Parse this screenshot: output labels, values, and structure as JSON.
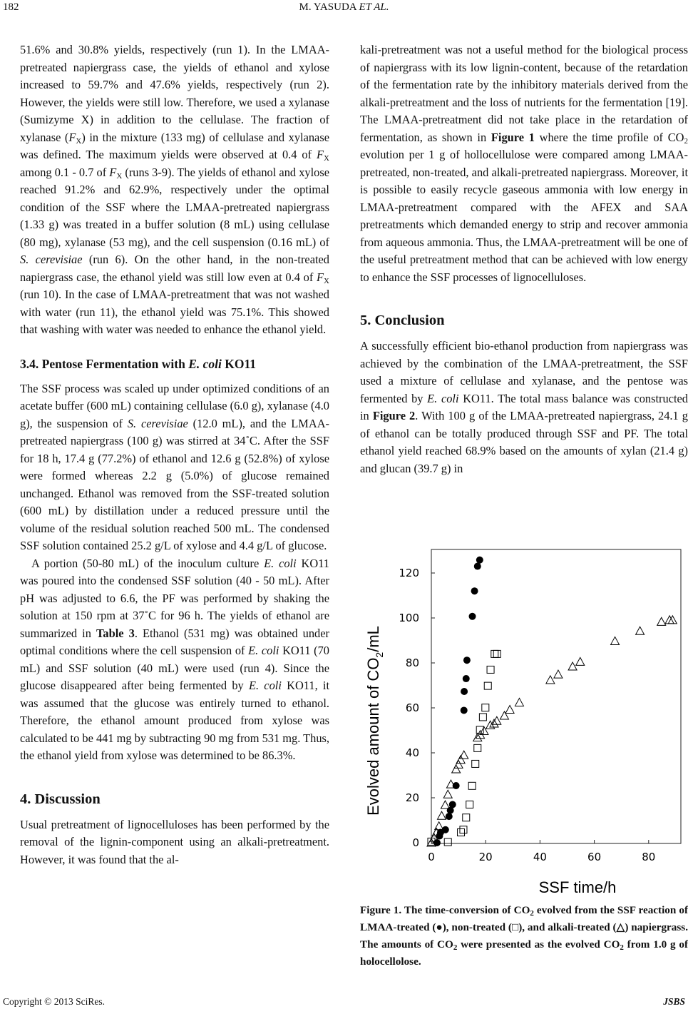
{
  "header": {
    "page_number": "182",
    "authors": "M. YASUDA ",
    "authors_suffix": "ET AL."
  },
  "left_column": [
    {
      "type": "p",
      "indent": false,
      "segments": [
        "51.6% and 30.8% yields, respectively (run 1). In the LMAA-pretreated napiergrass case, the yields of ethanol and xylose increased to 59.7% and 47.6% yields, respectively (run 2). However, the yields were still low. Therefore, we used a xylanase (Sumizyme X) in addition to the cellulase. The fraction of xylanase (",
        {
          "t": "F",
          "s": "i"
        },
        {
          "t": "X",
          "s": "sub"
        },
        ") in the mixture (133 mg) of cellulase and xylanase was defined. The maximum yields were observed at 0.4 of ",
        {
          "t": "F",
          "s": "i"
        },
        {
          "t": "X",
          "s": "sub"
        },
        " among 0.1 - 0.7 of ",
        {
          "t": "F",
          "s": "i"
        },
        {
          "t": "X",
          "s": "sub"
        },
        " (runs 3-9). The yields of ethanol and xylose reached 91.2% and 62.9%, respectively under the optimal condition of the SSF where the LMAA-pretreated napiergrass (1.33 g) was treated in a buffer solution (8 mL) using cellulase (80 mg), xylanase (53 mg), and the cell suspension (0.16 mL) of ",
        {
          "t": "S. cerevisiae",
          "s": "i"
        },
        " (run 6). On the other hand, in the non-treated napiergrass case, the ethanol yield was still low even at 0.4 of ",
        {
          "t": "F",
          "s": "i"
        },
        {
          "t": "X",
          "s": "sub"
        },
        " (run 10). In the case of LMAA-pretreatment that was not washed with water (run 11), the ethanol yield was 75.1%. This showed that washing with water was needed to enhance the ethanol yield."
      ]
    },
    {
      "type": "h",
      "segments": [
        "3.4. Pentose Fermentation with ",
        {
          "t": "E. coli",
          "s": "i"
        },
        " KO11"
      ]
    },
    {
      "type": "p",
      "indent": false,
      "segments": [
        "The SSF process was scaled up under optimized conditions of an acetate buffer (600 mL) containing cellulase (6.0 g), xylanase (4.0 g), the suspension of ",
        {
          "t": "S. cerevisiae",
          "s": "i"
        },
        " (12.0 mL), and the LMAA-pretreated napiergrass (100 g) was stirred at 34˚C. After the SSF for 18 h, 17.4 g (77.2%) of ethanol and 12.6 g (52.8%) of xylose were formed whereas 2.2 g (5.0%) of glucose remained unchanged. Ethanol was removed from the SSF-treated solution (600 mL) by distillation under a reduced pressure until the volume of the residual solution reached 500 mL. The condensed SSF solution contained 25.2 g/L of xylose and 4.4 g/L of glucose."
      ]
    },
    {
      "type": "p",
      "indent": true,
      "segments": [
        "A portion (50-80 mL) of the inoculum culture ",
        {
          "t": "E. coli",
          "s": "i"
        },
        " KO11 was poured into the condensed SSF solution (40 - 50 mL). After pH was adjusted to 6.6, the PF was performed by shaking the solution at 150 rpm at 37˚C for 96 h. The yields of ethanol are summarized in ",
        {
          "t": "Table 3",
          "s": "b"
        },
        ". Ethanol (531 mg) was obtained under optimal conditions where the cell suspension of ",
        {
          "t": "E. coli",
          "s": "i"
        },
        " KO11 (70 mL) and SSF solution (40 mL) were used (run 4). Since the glucose disappeared after being fermented by ",
        {
          "t": "E. coli",
          "s": "i"
        },
        " KO11, it was assumed that the glucose was entirely turned to ethanol. Therefore, the ethanol amount produced from xylose was calculated to be 441 mg by subtracting 90 mg from 531 mg. Thus, the ethanol yield from xylose was determined to be 86.3%."
      ]
    },
    {
      "type": "hbig",
      "segments": [
        "4. Discussion"
      ]
    },
    {
      "type": "p",
      "indent": false,
      "segments": [
        "Usual pretreatment of lignocelluloses has been performed by the removal of the lignin-component using an alkali-pretreatment. However, it was found that the al-"
      ]
    }
  ],
  "right_column": [
    {
      "type": "p",
      "indent": false,
      "segments": [
        "kali-pretreatment was not a useful method for the biological process of napiergrass with its low lignin-content, because of the retardation of the fermentation rate by the inhibitory materials derived from the alkali-pretreatment and the loss of nutrients for the fermentation [19]. The LMAA-pretreatment did not take place in the retardation of fermentation, as shown in ",
        {
          "t": "Figure 1",
          "s": "b"
        },
        " where the time profile of CO",
        {
          "t": "2",
          "s": "sub"
        },
        " evolution per 1 g of hollocellulose were compared among LMAA-pretreated, non-treated, and alkali-pretreated napiergrass. Moreover, it is possible to easily recycle gaseous ammonia with low energy in LMAA-pretreatment compared with the AFEX and SAA pretreatments which demanded energy to strip and recover ammonia from aqueous ammonia. Thus, the LMAA-pretreatment will be one of the useful pretreatment method that can be achieved with low energy to enhance the SSF processes of lignocelluloses."
      ]
    },
    {
      "type": "hbig",
      "segments": [
        "5. Conclusion"
      ]
    },
    {
      "type": "p",
      "indent": false,
      "segments": [
        "A successfully efficient bio-ethanol production from napiergrass was achieved by the combination of the LMAA-pretreatment, the SSF used a mixture of cellulase and xylanase, and the pentose was fermented by ",
        {
          "t": "E. coli",
          "s": "i"
        },
        " KO11. The total mass balance was constructed in ",
        {
          "t": "Figure 2",
          "s": "b"
        },
        ". With 100 g of the LMAA-pretreated napiergrass, 24.1 g of ethanol can be totally produced through SSF and PF. The total ethanol yield reached 68.9% based on the amounts of xylan (21.4 g) and glucan (39.7 g) in"
      ]
    }
  ],
  "figure_caption": {
    "segments": [
      "Figure 1. The time-conversion of CO",
      {
        "t": "2",
        "s": "sub"
      },
      " evolved from the SSF reaction of LMAA-treated (●), non-treated (□), and alkali-treated (△) napiergrass. The amounts of CO",
      {
        "t": "2",
        "s": "sub"
      },
      " were presented as the evolved CO",
      {
        "t": "2",
        "s": "sub"
      },
      " from 1.0 g of holocellolose."
    ]
  },
  "chart_data": {
    "type": "scatter",
    "xlabel": "SSF time/h",
    "ylabel_main": "Evolved amount of CO",
    "ylabel_sub": "2",
    "ylabel_unit": "/mL",
    "xlim": [
      0,
      92
    ],
    "ylim": [
      0,
      130
    ],
    "xticks": [
      "0",
      "20",
      "40",
      "60",
      "80"
    ],
    "yticks": [
      "0",
      "20",
      "40",
      "60",
      "80",
      "100",
      "120"
    ],
    "grid": false,
    "series": [
      {
        "marker": "filled-circle",
        "points": [
          [
            2.1,
            0
          ],
          [
            3,
            3
          ],
          [
            3.4,
            4.6
          ],
          [
            5.2,
            5.8
          ],
          [
            6.5,
            11.7
          ],
          [
            7,
            14.4
          ],
          [
            7.8,
            17
          ],
          [
            9.1,
            25.4
          ],
          [
            12,
            58.9
          ],
          [
            12.1,
            67.3
          ],
          [
            12.8,
            73
          ],
          [
            13.1,
            81.2
          ],
          [
            15.1,
            100.7
          ],
          [
            15.9,
            112
          ],
          [
            17,
            123
          ],
          [
            17.8,
            125.8
          ]
        ]
      },
      {
        "marker": "open-square",
        "points": [
          [
            0,
            0.5
          ],
          [
            6.1,
            0.3
          ],
          [
            10.9,
            4.6
          ],
          [
            11.8,
            5.8
          ],
          [
            12.8,
            11.2
          ],
          [
            14.1,
            17
          ],
          [
            15,
            25.3
          ],
          [
            16.2,
            35.1
          ],
          [
            17,
            42.1
          ],
          [
            17.9,
            50.2
          ],
          [
            19,
            55.9
          ],
          [
            19.9,
            60.1
          ],
          [
            20.8,
            69.8
          ],
          [
            21.8,
            77
          ],
          [
            23.3,
            84
          ],
          [
            24.2,
            84
          ]
        ]
      },
      {
        "marker": "open-triangle",
        "points": [
          [
            0,
            0
          ],
          [
            1,
            2.2
          ],
          [
            1.9,
            4.6
          ],
          [
            2.8,
            7.4
          ],
          [
            3.8,
            12
          ],
          [
            5.1,
            16.8
          ],
          [
            6.1,
            21.5
          ],
          [
            7.2,
            26
          ],
          [
            9.1,
            32.7
          ],
          [
            10,
            34.8
          ],
          [
            10.8,
            36.9
          ],
          [
            12,
            39
          ],
          [
            17,
            46.8
          ],
          [
            18,
            48
          ],
          [
            19.4,
            49.7
          ],
          [
            21.7,
            52.3
          ],
          [
            23.1,
            53
          ],
          [
            24.1,
            54.2
          ],
          [
            26.9,
            56.5
          ],
          [
            28.9,
            59.2
          ],
          [
            32.4,
            62.4
          ],
          [
            43.8,
            72.4
          ],
          [
            46.7,
            74.9
          ],
          [
            52,
            78.4
          ],
          [
            54.8,
            80.5
          ],
          [
            67.6,
            89.7
          ],
          [
            76.8,
            94.2
          ],
          [
            84.7,
            98.3
          ],
          [
            87.7,
            99.1
          ],
          [
            88.8,
            99.1
          ]
        ]
      }
    ]
  },
  "footer": {
    "copyright": "Copyright © 2013 SciRes.",
    "journal": "JSBS"
  }
}
